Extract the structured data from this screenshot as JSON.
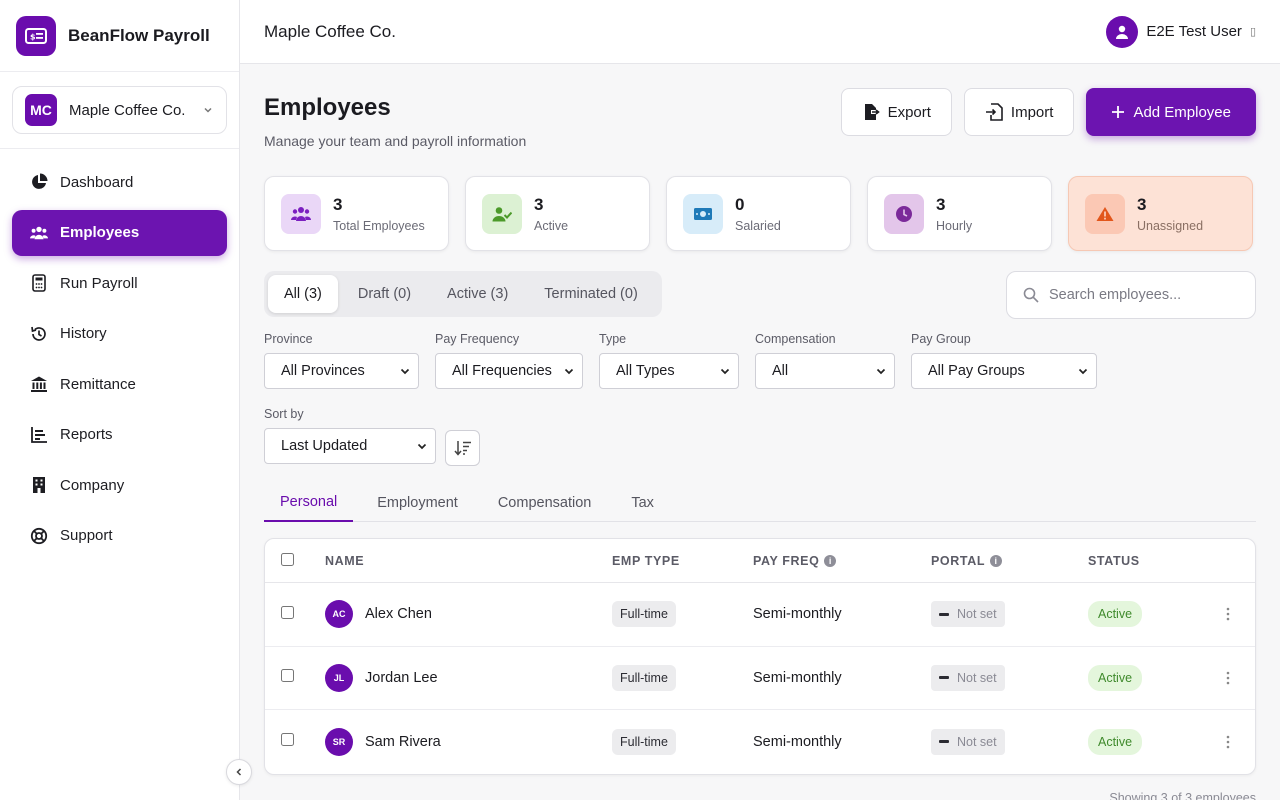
{
  "app": {
    "name": "BeanFlow Payroll"
  },
  "company": {
    "initials": "MC",
    "name": "Maple Coffee Co."
  },
  "nav": {
    "items": [
      {
        "label": "Dashboard",
        "icon": "pie-chart-icon"
      },
      {
        "label": "Employees",
        "icon": "users-icon",
        "active": true
      },
      {
        "label": "Run Payroll",
        "icon": "calculator-icon"
      },
      {
        "label": "History",
        "icon": "history-icon"
      },
      {
        "label": "Remittance",
        "icon": "bank-icon"
      },
      {
        "label": "Reports",
        "icon": "bar-chart-icon"
      },
      {
        "label": "Company",
        "icon": "building-icon"
      },
      {
        "label": "Support",
        "icon": "lifebuoy-icon"
      }
    ]
  },
  "header": {
    "company_name": "Maple Coffee Co.",
    "user_name": "E2E Test User",
    "user_caret": "▯"
  },
  "page": {
    "title": "Employees",
    "subtitle": "Manage your team and payroll information"
  },
  "actions": {
    "export_label": "Export",
    "import_label": "Import",
    "add_label": "Add Employee"
  },
  "stats": [
    {
      "value": "3",
      "label": "Total Employees",
      "icon": "users-icon",
      "bg": "#ead7f7",
      "fg": "#7b1fc0"
    },
    {
      "value": "3",
      "label": "Active",
      "icon": "user-check-icon",
      "bg": "#dcf1d3",
      "fg": "#4c9a2a"
    },
    {
      "value": "0",
      "label": "Salaried",
      "icon": "cash-icon",
      "bg": "#d7ecf9",
      "fg": "#1f7ab8"
    },
    {
      "value": "3",
      "label": "Hourly",
      "icon": "clock-icon",
      "bg": "#e3c6ea",
      "fg": "#7b2a9a"
    },
    {
      "value": "3",
      "label": "Unassigned",
      "icon": "warning-icon",
      "bg": "#fbc8b4",
      "fg": "#e2561b"
    }
  ],
  "status_tabs": [
    {
      "label": "All (3)",
      "active": true
    },
    {
      "label": "Draft (0)"
    },
    {
      "label": "Active (3)"
    },
    {
      "label": "Terminated (0)"
    }
  ],
  "search": {
    "placeholder": "Search employees..."
  },
  "filters": {
    "province": {
      "label": "Province",
      "value": "All Provinces"
    },
    "pay_frequency": {
      "label": "Pay Frequency",
      "value": "All Frequencies"
    },
    "type": {
      "label": "Type",
      "value": "All Types"
    },
    "compensation": {
      "label": "Compensation",
      "value": "All"
    },
    "pay_group": {
      "label": "Pay Group",
      "value": "All Pay Groups"
    },
    "sort": {
      "label": "Sort by",
      "value": "Last Updated"
    }
  },
  "view_tabs": [
    {
      "label": "Personal",
      "active": true
    },
    {
      "label": "Employment"
    },
    {
      "label": "Compensation"
    },
    {
      "label": "Tax"
    }
  ],
  "table": {
    "columns": {
      "name": "NAME",
      "emp_type": "EMP TYPE",
      "pay_freq": "PAY FREQ",
      "portal": "PORTAL",
      "status": "STATUS"
    },
    "rows": [
      {
        "initials": "AC",
        "name": "Alex Chen",
        "emp_type": "Full-time",
        "pay_freq": "Semi-monthly",
        "portal": "Not set",
        "status": "Active"
      },
      {
        "initials": "JL",
        "name": "Jordan Lee",
        "emp_type": "Full-time",
        "pay_freq": "Semi-monthly",
        "portal": "Not set",
        "status": "Active"
      },
      {
        "initials": "SR",
        "name": "Sam Rivera",
        "emp_type": "Full-time",
        "pay_freq": "Semi-monthly",
        "portal": "Not set",
        "status": "Active"
      }
    ],
    "footer": "Showing 3 of 3 employees"
  }
}
